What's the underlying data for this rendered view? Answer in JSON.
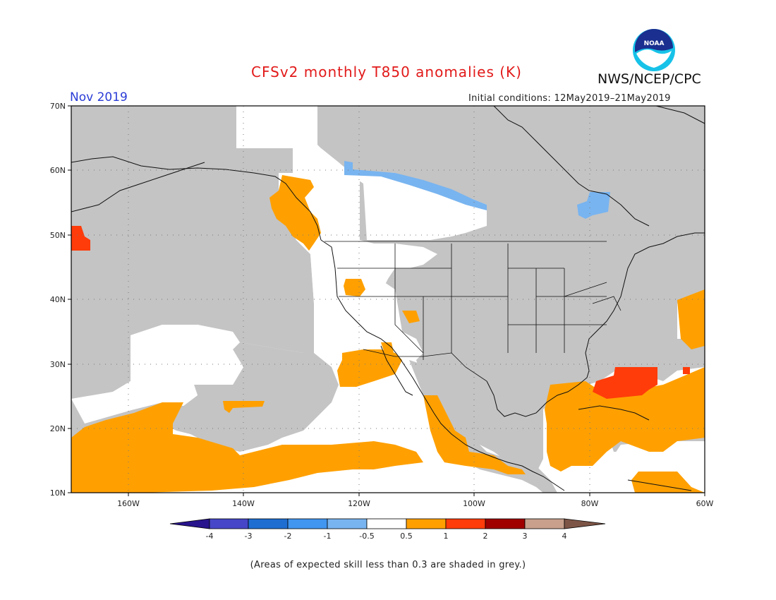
{
  "title": "CFSv2 monthly T850 anomalies (K)",
  "agency": "NWS/NCEP/CPC",
  "logo_text": "NOAA",
  "month_label": "Nov 2019",
  "initial_conditions": "Initial conditions: 12May2019–21May2019",
  "footnote": "(Areas of expected skill less than 0.3 are shaded in grey.)",
  "colors": {
    "skill_grey": "#c4c4c4",
    "neutral": "#ffffff",
    "warm_0_5": "#ffa000",
    "warm_1": "#ff3c0a",
    "warm_2": "#a00000",
    "warm_3": "#c8a08c",
    "warm_4": "#7d5546",
    "cool_0_5": "#78b4f0",
    "cool_1": "#4196f0",
    "cool_2": "#1e6ed2",
    "cool_3": "#4646c8",
    "cool_4": "#28148c"
  },
  "axes": {
    "lat_labels": [
      "70N",
      "60N",
      "50N",
      "40N",
      "30N",
      "20N",
      "10N"
    ],
    "lon_labels": [
      "160W",
      "140W",
      "120W",
      "100W",
      "80W",
      "60W"
    ]
  },
  "colorbar": {
    "labels": [
      "-4",
      "-3",
      "-2",
      "-1",
      "-0.5",
      "0.5",
      "1",
      "2",
      "3",
      "4"
    ]
  }
}
